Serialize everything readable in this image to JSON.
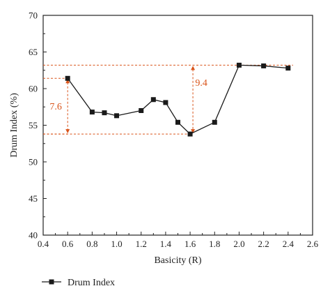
{
  "chart_data": {
    "type": "line",
    "title": "",
    "xlabel": "Basicity (R)",
    "ylabel": "Drum Index (%)",
    "xlim": [
      0.4,
      2.6
    ],
    "ylim": [
      40,
      70
    ],
    "xticks": [
      "0.4",
      "0.6",
      "0.8",
      "1.0",
      "1.2",
      "1.4",
      "1.6",
      "1.8",
      "2.0",
      "2.2",
      "2.4",
      "2.6"
    ],
    "yticks": [
      "40",
      "45",
      "50",
      "55",
      "60",
      "65",
      "70"
    ],
    "grid": false,
    "legend_position": "bottom-left",
    "series": [
      {
        "name": "Drum Index",
        "marker": "square",
        "color": "#1a1a1a",
        "x": [
          0.6,
          0.8,
          0.9,
          1.0,
          1.2,
          1.3,
          1.4,
          1.5,
          1.6,
          1.8,
          2.0,
          2.2,
          2.4
        ],
        "y": [
          61.4,
          56.8,
          56.7,
          56.3,
          57.0,
          58.5,
          58.1,
          55.4,
          53.8,
          55.4,
          63.2,
          63.1,
          62.8
        ]
      }
    ],
    "annotations": [
      {
        "label": "7.6",
        "x": 0.6,
        "y_from": 53.8,
        "y_to": 61.4,
        "color": "#d9541a"
      },
      {
        "label": "9.4",
        "x": 1.6,
        "y_from": 53.8,
        "y_to": 63.2,
        "color": "#d9541a"
      }
    ]
  }
}
